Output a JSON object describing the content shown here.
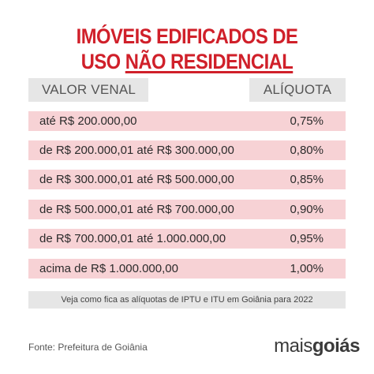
{
  "title": {
    "line1": "IMÓVEIS EDIFICADOS DE",
    "line2_plain": "USO ",
    "line2_underlined": "NÃO RESIDENCIAL"
  },
  "table": {
    "headers": {
      "value": "VALOR VENAL",
      "rate": "ALÍQUOTA"
    },
    "rows": [
      {
        "range": "até R$ 200.000,00",
        "rate": "0,75%"
      },
      {
        "range": "de R$ 200.000,01 até R$ 300.000,00",
        "rate": "0,80%"
      },
      {
        "range": "de R$ 300.000,01 até R$ 500.000,00",
        "rate": "0,85%"
      },
      {
        "range": "de R$ 500.000,01 até R$ 700.000,00",
        "rate": "0,90%"
      },
      {
        "range": "de R$ 700.000,01 até  1.000.000,00",
        "rate": "0,95%"
      },
      {
        "range": "acima de R$ 1.000.000,00",
        "rate": "1,00%"
      }
    ]
  },
  "note": "Veja como fica as alíquotas de IPTU e ITU em Goiânia para 2022",
  "source": "Fonte: Prefeitura de Goiânia",
  "logo": {
    "part1": "mais",
    "part2": "goiás"
  },
  "colors": {
    "accent": "#d0202a",
    "row_background": "#f7d2d5",
    "header_background": "#e6e6e6"
  }
}
